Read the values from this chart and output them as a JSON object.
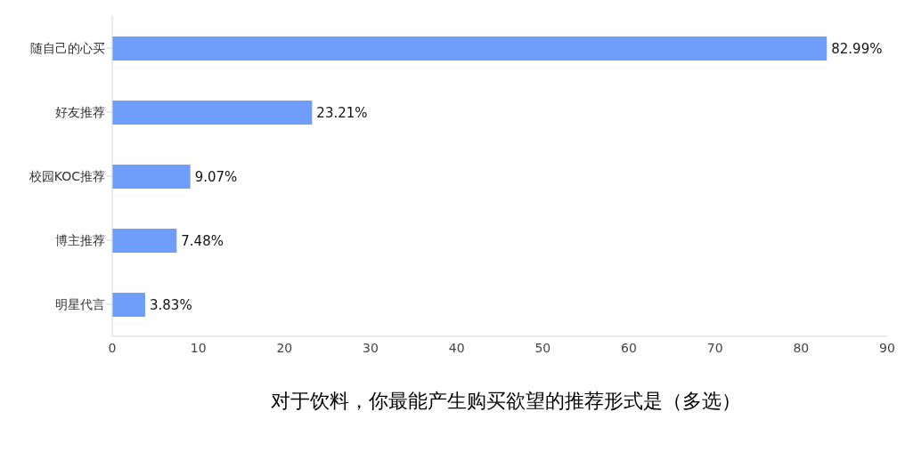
{
  "chart_data": {
    "type": "bar",
    "orientation": "horizontal",
    "title": "对于饮料，你最能产生购买欲望的推荐形式是（多选）",
    "categories": [
      "随自己的心买",
      "好友推荐",
      "校园KOC推荐",
      "博主推荐",
      "明星代言"
    ],
    "values": [
      82.99,
      23.21,
      9.07,
      7.48,
      3.83
    ],
    "value_labels": [
      "82.99%",
      "23.21%",
      "9.07%",
      "7.48%",
      "3.83%"
    ],
    "color": "#6e9ef9",
    "xlim": [
      0,
      90
    ],
    "xticks": [
      0,
      10,
      20,
      30,
      40,
      50,
      60,
      70,
      80,
      90
    ],
    "grid": false,
    "legend": false
  }
}
